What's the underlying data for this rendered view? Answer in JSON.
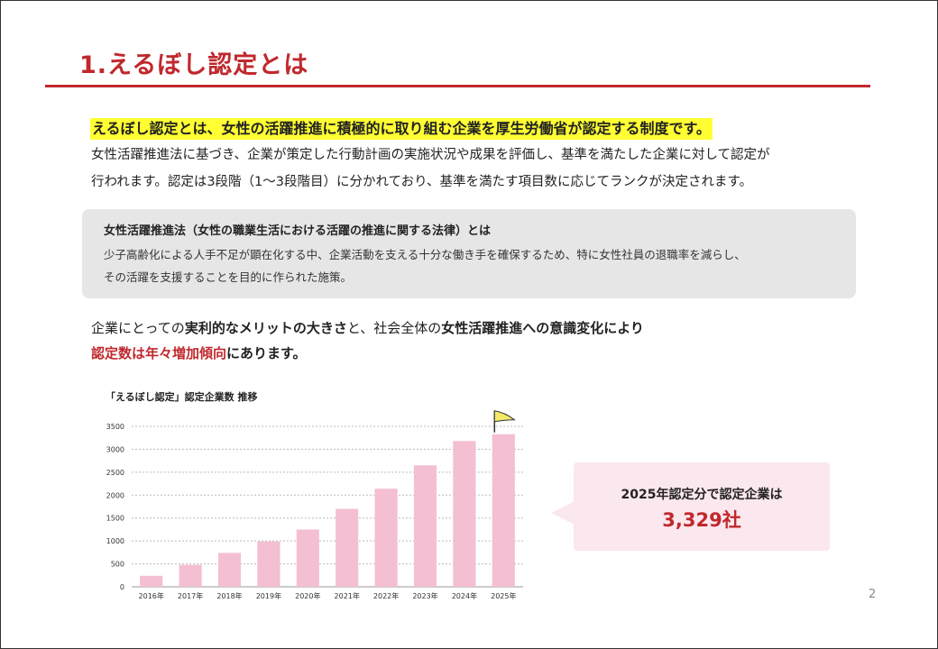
{
  "slide": {
    "title": "1.えるぼし認定とは",
    "page_number": "2"
  },
  "intro": {
    "highlight": "えるぼし認定とは、女性の活躍推進に積極的に取り組む企業を厚生労働省が認定する制度です。",
    "line1": "女性活躍推進法に基づき、企業が策定した行動計画の実施状況や成果を評価し、基準を満たした企業に対して認定が",
    "line2": "行われます。認定は3段階（1〜3段階目）に分かれており、基準を満たす項目数に応じてランクが決定されます。"
  },
  "definition_box": {
    "title": "女性活躍推進法（女性の職業生活における活躍の推進に関する法律）とは",
    "line1": "少子高齢化による人手不足が顕在化する中、企業活動を支える十分な働き手を確保するため、特に女性社員の退職率を減らし、",
    "line2": "その活躍を支援することを目的に作られた施策。"
  },
  "message": {
    "l1_a": "企業にとっての",
    "l1_b": "実利的なメリットの大きさ",
    "l1_c": "と、社会全体の",
    "l1_d": "女性活躍推進への意識変化により",
    "l2_a": "認定数は年々増加傾向",
    "l2_b": "にあります。"
  },
  "callout": {
    "line1": "2025年認定分で認定企業は",
    "line2": "3,329社"
  },
  "colors": {
    "accent": "#c0282d",
    "highlight": "#ffff33",
    "bar": "#f4bfd3",
    "callout_bg": "#fbe7ee",
    "flag": "#f5e96a"
  },
  "chart_data": {
    "type": "bar",
    "title": "「えるぼし認定」認定企業数 推移",
    "categories": [
      "2016年",
      "2017年",
      "2018年",
      "2019年",
      "2020年",
      "2021年",
      "2022年",
      "2023年",
      "2024年",
      "2025年"
    ],
    "values": [
      240,
      480,
      740,
      990,
      1250,
      1700,
      2140,
      2650,
      3180,
      3329
    ],
    "ylim": [
      0,
      3500
    ],
    "yticks": [
      "0",
      "500",
      "1000",
      "1500",
      "2000",
      "2500",
      "3000",
      "3500"
    ],
    "grid": true,
    "marker_icon": "flag-icon"
  }
}
